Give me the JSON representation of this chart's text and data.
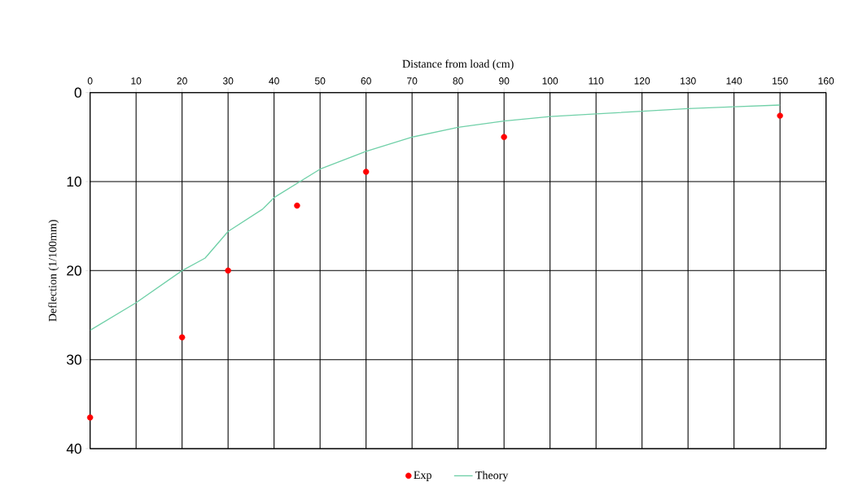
{
  "chart_data": {
    "type": "scatter",
    "xlabel": "Distance from load (cm)",
    "ylabel": "Deflection (1/100mm)",
    "xlim": [
      0,
      160
    ],
    "xticks": [
      0,
      10,
      20,
      30,
      40,
      50,
      60,
      70,
      80,
      90,
      100,
      110,
      120,
      130,
      140,
      150,
      160
    ],
    "ylim": [
      40,
      0
    ],
    "yticks": [
      0,
      10,
      20,
      30,
      40
    ],
    "grid": true,
    "legend": "bottom",
    "series": [
      {
        "name": "Exp",
        "marker": "circle",
        "color": "#ff0000",
        "x": [
          0,
          20,
          30,
          45,
          60,
          90,
          150
        ],
        "values": [
          36.5,
          27.5,
          20.0,
          12.7,
          8.9,
          5.0,
          2.6
        ]
      },
      {
        "name": "Theory",
        "type": "line",
        "marker": "none",
        "color": "#70d0a8",
        "x": [
          0,
          10,
          20,
          25,
          30,
          37.5,
          40,
          45,
          50,
          60,
          70,
          80,
          90,
          100,
          110,
          120,
          130,
          140,
          150
        ],
        "values": [
          26.7,
          23.6,
          20.0,
          18.6,
          15.6,
          13.1,
          11.8,
          10.2,
          8.6,
          6.6,
          5.0,
          3.9,
          3.2,
          2.7,
          2.4,
          2.1,
          1.8,
          1.6,
          1.4
        ]
      }
    ]
  }
}
